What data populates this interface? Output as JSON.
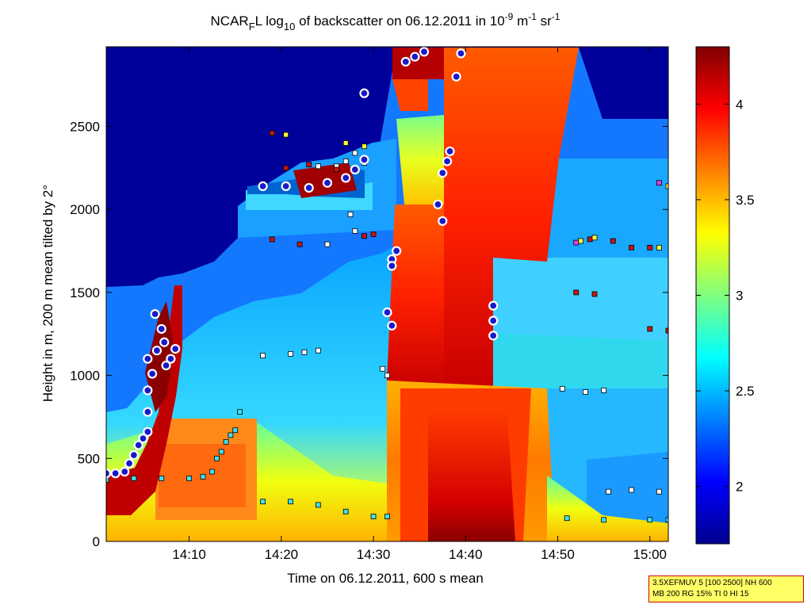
{
  "chart_data": {
    "type": "heatmap",
    "title": {
      "prefix": "NCAR",
      "sub1": "F",
      "mid1": "L log",
      "sub2": "10",
      "mid2": " of backscatter on 06.12.2011 in 10",
      "sup1": "-9",
      "mid3": " m",
      "sup2": "-1",
      "mid4": " sr",
      "sup3": "-1"
    },
    "xlabel": "Time on 06.12.2011, 600 s mean",
    "ylabel": "Height in m, 200 m mean tilted by 2°",
    "xlim": [
      "14:01",
      "15:02"
    ],
    "ylim": [
      0,
      2980
    ],
    "x_ticks": [
      "14:10",
      "14:20",
      "14:30",
      "14:40",
      "14:50",
      "15:00"
    ],
    "y_ticks": [
      0,
      500,
      1000,
      1500,
      2000,
      2500
    ],
    "colorbar": {
      "colormap": "jet",
      "range": [
        1.7,
        4.3
      ],
      "ticks": [
        "2",
        "2.5",
        "3",
        "3.5",
        "4"
      ]
    },
    "grid": false,
    "markers": {
      "cloud_base_circles": {
        "fill": "#1a1ac8",
        "edge": "#ffffff",
        "points": [
          [
            "14:01",
            410
          ],
          [
            "14:02",
            410
          ],
          [
            "14:03",
            420
          ],
          [
            "14:03.5",
            470
          ],
          [
            "14:04",
            520
          ],
          [
            "14:04.5",
            580
          ],
          [
            "14:05",
            620
          ],
          [
            "14:05.5",
            660
          ],
          [
            "14:05.5",
            780
          ],
          [
            "14:05.5",
            910
          ],
          [
            "14:06",
            1010
          ],
          [
            "14:06.5",
            1150
          ],
          [
            "14:05.5",
            1100
          ],
          [
            "14:06.3",
            1370
          ],
          [
            "14:07",
            1280
          ],
          [
            "14:07.3",
            1200
          ],
          [
            "14:07.5",
            1060
          ],
          [
            "14:08",
            1100
          ],
          [
            "14:08.5",
            1160
          ],
          [
            "14:18",
            2140
          ],
          [
            "14:20.5",
            2140
          ],
          [
            "14:23",
            2130
          ],
          [
            "14:25",
            2160
          ],
          [
            "14:27",
            2190
          ],
          [
            "14:28",
            2240
          ],
          [
            "14:29",
            2300
          ],
          [
            "14:29",
            2700
          ],
          [
            "14:31.5",
            1380
          ],
          [
            "14:32",
            1300
          ],
          [
            "14:32",
            1700
          ],
          [
            "14:32",
            1660
          ],
          [
            "14:32.5",
            1750
          ],
          [
            "14:33.5",
            2890
          ],
          [
            "14:34.5",
            2920
          ],
          [
            "14:35.5",
            2950
          ],
          [
            "14:37",
            2030
          ],
          [
            "14:37.5",
            1930
          ],
          [
            "14:37.5",
            2220
          ],
          [
            "14:38",
            2290
          ],
          [
            "14:38.3",
            2350
          ],
          [
            "14:39",
            2800
          ],
          [
            "14:39.5",
            2940
          ],
          [
            "14:43",
            1420
          ],
          [
            "14:43",
            1330
          ],
          [
            "14:43",
            1240
          ]
        ]
      },
      "cyan_squares": {
        "color": "#40e0f0",
        "points": [
          [
            "14:01",
            370
          ],
          [
            "14:04",
            380
          ],
          [
            "14:07",
            380
          ],
          [
            "14:10",
            380
          ],
          [
            "14:11.5",
            390
          ],
          [
            "14:12.5",
            420
          ],
          [
            "14:13",
            500
          ],
          [
            "14:13.5",
            540
          ],
          [
            "14:14",
            600
          ],
          [
            "14:14.5",
            640
          ],
          [
            "14:15",
            670
          ],
          [
            "14:15.5",
            780
          ],
          [
            "14:18",
            240
          ],
          [
            "14:21",
            240
          ],
          [
            "14:24",
            220
          ],
          [
            "14:27",
            180
          ],
          [
            "14:30",
            150
          ],
          [
            "14:31.5",
            150
          ],
          [
            "14:51",
            140
          ],
          [
            "14:55",
            130
          ],
          [
            "15:00",
            130
          ],
          [
            "15:02",
            130
          ]
        ]
      },
      "white_squares": {
        "color": "#ffffff",
        "points": [
          [
            "14:18",
            1120
          ],
          [
            "14:21",
            1130
          ],
          [
            "14:22.5",
            1140
          ],
          [
            "14:24",
            1150
          ],
          [
            "14:24",
            2260
          ],
          [
            "14:26",
            2260
          ],
          [
            "14:27",
            2290
          ],
          [
            "14:28",
            2340
          ],
          [
            "14:29",
            2280
          ],
          [
            "14:27.5",
            1970
          ],
          [
            "14:28",
            1870
          ],
          [
            "14:25",
            1790
          ],
          [
            "14:31",
            1040
          ],
          [
            "14:31.5",
            1000
          ],
          [
            "14:50.5",
            920
          ],
          [
            "14:53",
            900
          ],
          [
            "14:55",
            910
          ],
          [
            "14:55.5",
            300
          ],
          [
            "14:58",
            310
          ],
          [
            "15:01",
            300
          ]
        ]
      },
      "red_squares": {
        "color": "#c81414",
        "points": [
          [
            "14:19",
            2460
          ],
          [
            "14:20.5",
            2250
          ],
          [
            "14:23",
            2270
          ],
          [
            "14:26",
            2240
          ],
          [
            "14:22",
            1790
          ],
          [
            "14:19",
            1820
          ],
          [
            "14:29",
            1840
          ],
          [
            "14:30",
            1850
          ],
          [
            "14:52",
            1500
          ],
          [
            "14:54",
            1490
          ],
          [
            "14:53.5",
            1820
          ],
          [
            "14:56",
            1810
          ],
          [
            "14:58",
            1770
          ],
          [
            "15:00",
            1770
          ],
          [
            "15:00",
            1280
          ],
          [
            "15:02",
            1270
          ]
        ]
      },
      "yellow_squares": {
        "color": "#ffff40",
        "points": [
          [
            "14:20.5",
            2450
          ],
          [
            "14:27",
            2400
          ],
          [
            "14:29",
            2380
          ],
          [
            "14:52.5",
            1810
          ],
          [
            "14:54",
            1830
          ],
          [
            "15:01",
            1770
          ],
          [
            "15:02",
            2140
          ]
        ]
      },
      "magenta_squares": {
        "color": "#e040e0",
        "points": [
          [
            "15:01",
            2160
          ],
          [
            "14:52",
            1800
          ]
        ]
      }
    }
  },
  "info_box": {
    "line1": "3.5XEFMUV 5 [100 2500] NH 600",
    "line2": "MB 200 RG 15% TI 0 HI 15"
  }
}
